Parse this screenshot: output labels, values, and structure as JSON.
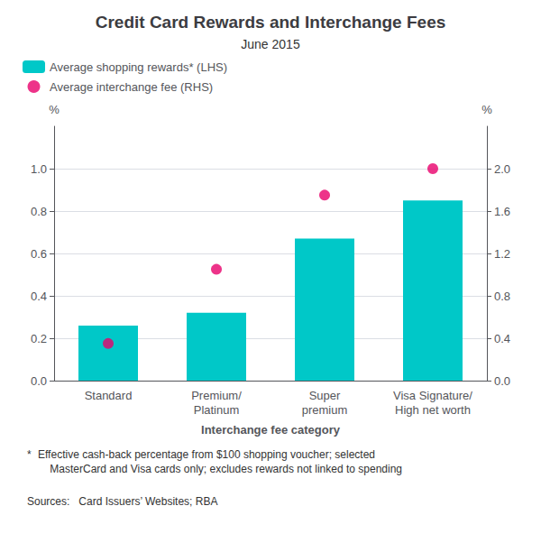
{
  "chart_data": {
    "type": "bar",
    "title": "Credit Card Rewards and Interchange Fees",
    "subtitle": "June 2015",
    "categories": [
      "Standard",
      "Premium/\nPlatinum",
      "Super\npremium",
      "Visa Signature/\nHigh net worth"
    ],
    "xlabel": "Interchange fee category",
    "ylabel": "%",
    "y2label": "%",
    "series": [
      {
        "name": "Average shopping rewards* (LHS)",
        "type": "bar",
        "color": "#00C8C8",
        "values": [
          0.26,
          0.32,
          0.67,
          0.85
        ]
      },
      {
        "name": "Average interchange fee (RHS)",
        "type": "scatter",
        "color": "#E8006B",
        "axis": "y2",
        "values": [
          0.35,
          1.05,
          1.75,
          2.0
        ]
      }
    ],
    "ylim": [
      0.0,
      1.2
    ],
    "yticks": [
      {
        "value": 0,
        "label": "0.0"
      },
      0.2,
      0.4,
      0.6,
      0.8,
      {
        "value": 1,
        "label": "1.0"
      }
    ],
    "y2lim": [
      0.0,
      2.4
    ],
    "y2ticks": [
      {
        "value": 0,
        "label": "0.0"
      },
      0.4,
      0.8,
      1.2,
      1.6,
      {
        "value": 2,
        "label": "2.0"
      }
    ],
    "grid": true,
    "legend": "upper left",
    "annotations": [
      "*",
      "Effective cash-back percentage from $100 shopping voucher; selected\n    MasterCard and Visa cards only; excludes rewards not linked to spending",
      "Sources:   Card Issuers’ Websites; RBA"
    ]
  }
}
